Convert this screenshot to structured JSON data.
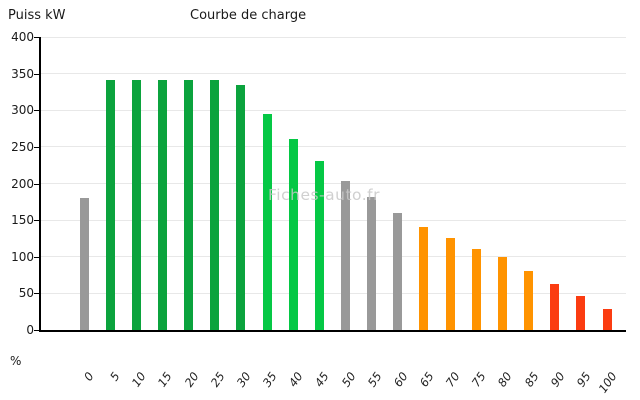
{
  "chart_data": {
    "type": "bar",
    "title": "Courbe de charge",
    "ylabel": "Puiss kW",
    "xlabel": "%",
    "watermark": "Fiches-auto.fr",
    "categories": [
      "0",
      "5",
      "10",
      "15",
      "20",
      "25",
      "30",
      "35",
      "40",
      "45",
      "50",
      "55",
      "60",
      "65",
      "70",
      "75",
      "80",
      "85",
      "90",
      "95",
      "100"
    ],
    "values": [
      180,
      341,
      341,
      341,
      341,
      341,
      334,
      295,
      261,
      231,
      204,
      182,
      160,
      141,
      126,
      111,
      99,
      81,
      63,
      46,
      28
    ],
    "bar_color_keys": [
      "gray",
      "green",
      "green",
      "green",
      "green",
      "green",
      "green",
      "lightgreen",
      "lightgreen",
      "lightgreen",
      "gray",
      "gray",
      "gray",
      "orange",
      "orange",
      "orange",
      "orange",
      "orange",
      "red",
      "red",
      "red"
    ],
    "palette": {
      "gray": "#999999",
      "green": "#0ba33d",
      "lightgreen": "#05c845",
      "orange": "#ff9300",
      "red": "#fb3c11"
    },
    "ylim": [
      0,
      400
    ],
    "yticks": [
      0,
      50,
      100,
      150,
      200,
      250,
      300,
      350,
      400
    ],
    "grid": "horizontal",
    "legend": "none",
    "axis_color": "#000000",
    "gridline_color": "#e8e8e8"
  }
}
